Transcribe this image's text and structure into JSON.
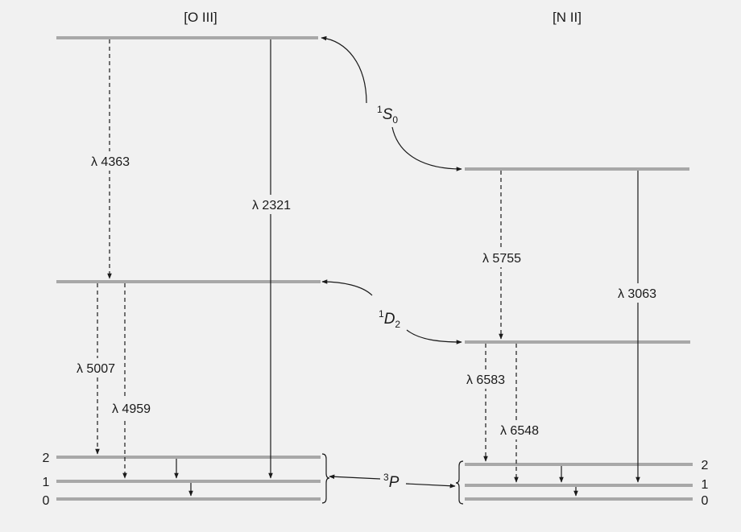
{
  "ions": {
    "oiii": "[O III]",
    "nii": "[N II]"
  },
  "terms": {
    "s0": {
      "sup": "1",
      "main": "S",
      "sub": "0"
    },
    "d2": {
      "sup": "1",
      "main": "D",
      "sub": "2"
    },
    "p3": {
      "sup": "3",
      "main": "P"
    }
  },
  "j_levels": {
    "oiii": [
      "2",
      "1",
      "0"
    ],
    "nii": [
      "2",
      "1",
      "0"
    ]
  },
  "transitions": {
    "oiii_4363": "λ 4363",
    "oiii_2321": "λ 2321",
    "oiii_5007": "λ 5007",
    "oiii_4959": "λ 4959",
    "nii_5755": "λ 5755",
    "nii_3063": "λ 3063",
    "nii_6583": "λ 6583",
    "nii_6548": "λ 6548"
  }
}
